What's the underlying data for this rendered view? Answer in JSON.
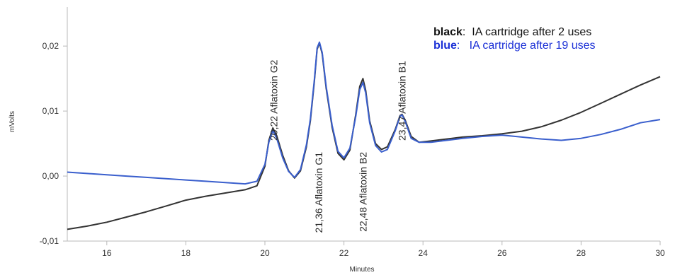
{
  "chart_data": {
    "type": "line",
    "title": "",
    "xlabel": "Minutes",
    "ylabel": "mVolts",
    "xlim": [
      15,
      30
    ],
    "ylim": [
      -0.01,
      0.026
    ],
    "x_ticks": [
      "16",
      "18",
      "20",
      "22",
      "24",
      "26",
      "28",
      "30"
    ],
    "y_ticks": [
      "0,02",
      "0,01",
      "0,00",
      "-0,01"
    ],
    "grid": false,
    "legend": {
      "placement": "top-right",
      "entries": [
        {
          "key": "black",
          "sep": ":",
          "text": "  IA cartridge after 2 uses",
          "color": "#111111"
        },
        {
          "key": "blue",
          "sep": ":",
          "text": "   IA cartridge after 19 uses",
          "color": "#1a2fd6"
        }
      ]
    },
    "peak_annotations": [
      {
        "time": "20,22",
        "name": "Aflatoxin G2",
        "x": 20.22,
        "side": "above"
      },
      {
        "time": "21,36",
        "name": "Aflatoxin G1",
        "x": 21.36,
        "side": "below"
      },
      {
        "time": "22,48",
        "name": "Aflatoxin B2",
        "x": 22.48,
        "side": "below"
      },
      {
        "time": "23,47",
        "name": "Aflatoxin B1",
        "x": 23.47,
        "side": "above"
      }
    ],
    "series": [
      {
        "color": "#333333",
        "x": [
          15.0,
          15.5,
          16.0,
          16.5,
          17.0,
          17.5,
          18.0,
          18.5,
          19.0,
          19.5,
          19.8,
          20.0,
          20.1,
          20.2,
          20.3,
          20.45,
          20.6,
          20.75,
          20.9,
          21.05,
          21.15,
          21.25,
          21.32,
          21.38,
          21.45,
          21.55,
          21.7,
          21.85,
          22.0,
          22.15,
          22.3,
          22.4,
          22.48,
          22.55,
          22.65,
          22.8,
          22.95,
          23.1,
          23.3,
          23.42,
          23.47,
          23.55,
          23.7,
          23.9,
          24.2,
          24.6,
          25.0,
          25.5,
          26.0,
          26.5,
          27.0,
          27.5,
          28.0,
          28.5,
          29.0,
          29.5,
          30.0
        ],
        "y": [
          -0.0082,
          -0.0077,
          -0.0071,
          -0.0063,
          -0.0055,
          -0.0046,
          -0.0037,
          -0.0031,
          -0.0026,
          -0.0021,
          -0.0015,
          0.0015,
          0.0055,
          0.0074,
          0.0062,
          0.0032,
          0.0008,
          -0.0003,
          0.0008,
          0.0045,
          0.0085,
          0.0145,
          0.0195,
          0.0205,
          0.0188,
          0.0135,
          0.0075,
          0.0035,
          0.0025,
          0.004,
          0.0095,
          0.0138,
          0.015,
          0.0132,
          0.0085,
          0.005,
          0.0041,
          0.0045,
          0.0072,
          0.0093,
          0.0095,
          0.0086,
          0.0061,
          0.0052,
          0.0054,
          0.0057,
          0.006,
          0.0062,
          0.0065,
          0.0069,
          0.0076,
          0.0086,
          0.0098,
          0.0112,
          0.0126,
          0.014,
          0.0153
        ]
      },
      {
        "color": "#3a5fcd",
        "x": [
          15.0,
          15.5,
          16.0,
          16.5,
          17.0,
          17.5,
          18.0,
          18.5,
          19.0,
          19.5,
          19.8,
          20.0,
          20.1,
          20.2,
          20.3,
          20.45,
          20.6,
          20.75,
          20.9,
          21.05,
          21.15,
          21.25,
          21.32,
          21.38,
          21.45,
          21.55,
          21.7,
          21.85,
          22.0,
          22.15,
          22.3,
          22.4,
          22.48,
          22.55,
          22.65,
          22.8,
          22.95,
          23.1,
          23.3,
          23.42,
          23.47,
          23.55,
          23.7,
          23.9,
          24.2,
          24.6,
          25.0,
          25.5,
          26.0,
          26.5,
          27.0,
          27.5,
          28.0,
          28.5,
          29.0,
          29.5,
          30.0
        ],
        "y": [
          0.0006,
          0.0004,
          0.0002,
          0.0,
          -0.0002,
          -0.0004,
          -0.0006,
          -0.0008,
          -0.001,
          -0.0012,
          -0.0008,
          0.0018,
          0.0052,
          0.007,
          0.0058,
          0.0028,
          0.0007,
          -0.0002,
          0.001,
          0.0048,
          0.0088,
          0.0148,
          0.0197,
          0.0206,
          0.019,
          0.0138,
          0.0078,
          0.0038,
          0.0028,
          0.0043,
          0.0092,
          0.0133,
          0.0144,
          0.0128,
          0.0082,
          0.0047,
          0.0037,
          0.0041,
          0.007,
          0.0092,
          0.0094,
          0.0084,
          0.0058,
          0.0052,
          0.0052,
          0.0055,
          0.0058,
          0.0061,
          0.0063,
          0.006,
          0.0057,
          0.0055,
          0.0058,
          0.0064,
          0.0072,
          0.0082,
          0.0087
        ]
      }
    ]
  }
}
